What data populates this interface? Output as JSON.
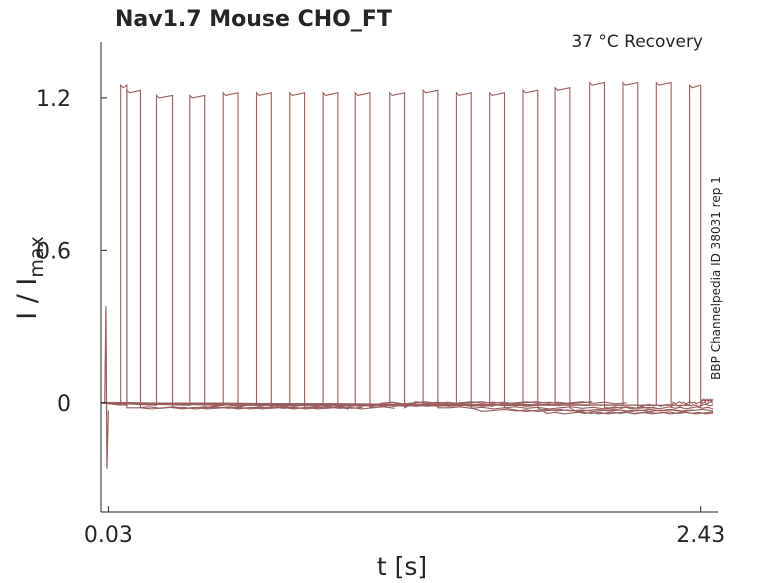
{
  "chart_data": {
    "type": "line",
    "title": "Nav1.7  Mouse  CHO_FT",
    "annotation": "37 °C  Recovery",
    "side_label": "BBP Channelpedia ID 38031 rep 1",
    "xlabel": "t [s]",
    "ylabel_main": "I / I",
    "ylabel_sub": "max",
    "x_ticks": [
      0.03,
      2.43
    ],
    "x_tick_labels": [
      "0.03",
      "2.43"
    ],
    "y_ticks": [
      0,
      0.6,
      1.2
    ],
    "y_tick_labels": [
      "0",
      "0.6",
      "1.2"
    ],
    "xlim": [
      0.0,
      2.5
    ],
    "ylim": [
      -0.43,
      1.42
    ],
    "grid": false,
    "color": "#9a5f5f",
    "series": [
      {
        "pulse_start": 0.08,
        "pulse_end": 0.105,
        "peak": 1.25,
        "baseline": -0.02
      },
      {
        "pulse_start": 0.105,
        "pulse_end": 0.16,
        "peak": 1.23,
        "baseline": -0.02
      },
      {
        "pulse_start": 0.225,
        "pulse_end": 0.29,
        "peak": 1.21,
        "baseline": -0.02
      },
      {
        "pulse_start": 0.36,
        "pulse_end": 0.42,
        "peak": 1.21,
        "baseline": -0.01
      },
      {
        "pulse_start": 0.495,
        "pulse_end": 0.555,
        "peak": 1.22,
        "baseline": -0.01
      },
      {
        "pulse_start": 0.63,
        "pulse_end": 0.69,
        "peak": 1.22,
        "baseline": -0.01
      },
      {
        "pulse_start": 0.765,
        "pulse_end": 0.825,
        "peak": 1.22,
        "baseline": -0.01
      },
      {
        "pulse_start": 0.9,
        "pulse_end": 0.96,
        "peak": 1.22,
        "baseline": -0.01
      },
      {
        "pulse_start": 1.03,
        "pulse_end": 1.09,
        "peak": 1.22,
        "baseline": 0.0
      },
      {
        "pulse_start": 1.17,
        "pulse_end": 1.23,
        "peak": 1.22,
        "baseline": 0.0
      },
      {
        "pulse_start": 1.305,
        "pulse_end": 1.365,
        "peak": 1.23,
        "baseline": -0.02
      },
      {
        "pulse_start": 1.44,
        "pulse_end": 1.5,
        "peak": 1.22,
        "baseline": -0.03
      },
      {
        "pulse_start": 1.575,
        "pulse_end": 1.635,
        "peak": 1.22,
        "baseline": -0.03
      },
      {
        "pulse_start": 1.71,
        "pulse_end": 1.77,
        "peak": 1.23,
        "baseline": -0.04
      },
      {
        "pulse_start": 1.84,
        "pulse_end": 1.9,
        "peak": 1.24,
        "baseline": -0.04
      },
      {
        "pulse_start": 1.98,
        "pulse_end": 2.04,
        "peak": 1.26,
        "baseline": -0.02
      },
      {
        "pulse_start": 2.115,
        "pulse_end": 2.175,
        "peak": 1.26,
        "baseline": -0.01
      },
      {
        "pulse_start": 2.25,
        "pulse_end": 2.31,
        "peak": 1.26,
        "baseline": 0.0
      },
      {
        "pulse_start": 2.385,
        "pulse_end": 2.43,
        "peak": 1.25,
        "baseline": 0.01
      }
    ],
    "artifact": {
      "x": 0.02,
      "min": -0.26,
      "max": 0.38
    }
  }
}
